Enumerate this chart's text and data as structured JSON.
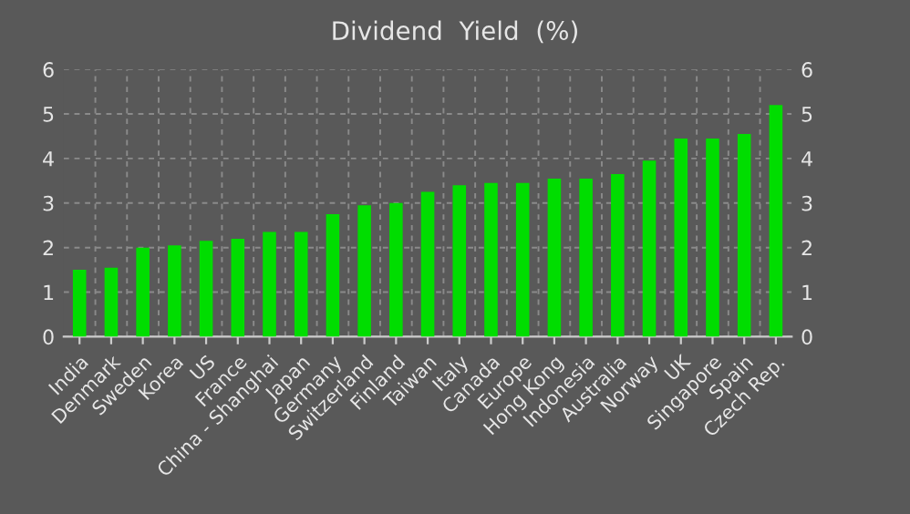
{
  "chart_data": {
    "type": "bar",
    "title": "Dividend  Yield  (%)",
    "categories": [
      "India",
      "Denmark",
      "Sweden",
      "Korea",
      "US",
      "France",
      "China - Shanghai",
      "Japan",
      "Germany",
      "Switzerland",
      "Finland",
      "Taiwan",
      "Italy",
      "Canada",
      "Europe",
      "Hong Kong",
      "Indonesia",
      "Australia",
      "Norway",
      "UK",
      "Singapore",
      "Spain",
      "Czech Rep."
    ],
    "values": [
      1.5,
      1.55,
      2.0,
      2.05,
      2.15,
      2.2,
      2.35,
      2.35,
      2.75,
      2.95,
      3.0,
      3.25,
      3.4,
      3.45,
      3.45,
      3.55,
      3.55,
      3.65,
      3.95,
      4.45,
      4.45,
      4.55,
      5.2
    ],
    "color": "#00dd00",
    "ylim": [
      0,
      6
    ],
    "yticks": [
      0,
      1,
      2,
      3,
      4,
      5,
      6
    ],
    "y2lim": [
      0,
      6
    ],
    "y2ticks": [
      0,
      1,
      2,
      3,
      4,
      5,
      6
    ],
    "grid": true
  }
}
